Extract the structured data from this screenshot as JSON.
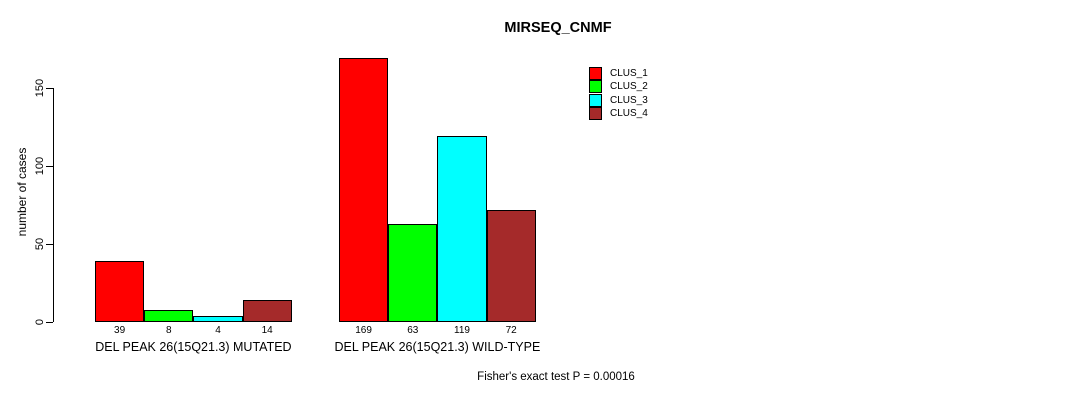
{
  "title": "MIRSEQ_CNMF",
  "ylabel": "number of cases",
  "footnote": "Fisher's exact test P = 0.00016",
  "legend": [
    {
      "label": "CLUS_1",
      "color": "#FF0000"
    },
    {
      "label": "CLUS_2",
      "color": "#00FF00"
    },
    {
      "label": "CLUS_3",
      "color": "#00FFFF"
    },
    {
      "label": "CLUS_4",
      "color": "#A52A2A"
    }
  ],
  "chart_data": {
    "type": "bar",
    "title": "MIRSEQ_CNMF",
    "ylabel": "number of cases",
    "xlabel": "",
    "ylim": [
      0,
      175
    ],
    "yticks": [
      0,
      50,
      100,
      150
    ],
    "grid": false,
    "legend_position": "top-right-inside",
    "categories": [
      "DEL PEAK 26(15Q21.3) MUTATED",
      "DEL PEAK 26(15Q21.3) WILD-TYPE"
    ],
    "series": [
      {
        "name": "CLUS_1",
        "color": "#FF0000",
        "values": [
          39,
          169
        ]
      },
      {
        "name": "CLUS_2",
        "color": "#00FF00",
        "values": [
          8,
          63
        ]
      },
      {
        "name": "CLUS_3",
        "color": "#00FFFF",
        "values": [
          4,
          119
        ]
      },
      {
        "name": "CLUS_4",
        "color": "#A52A2A",
        "values": [
          14,
          72
        ]
      }
    ],
    "bar_value_labels": [
      [
        39,
        8,
        4,
        14
      ],
      [
        169,
        63,
        119,
        72
      ]
    ],
    "annotation": "Fisher's exact test P = 0.00016"
  }
}
